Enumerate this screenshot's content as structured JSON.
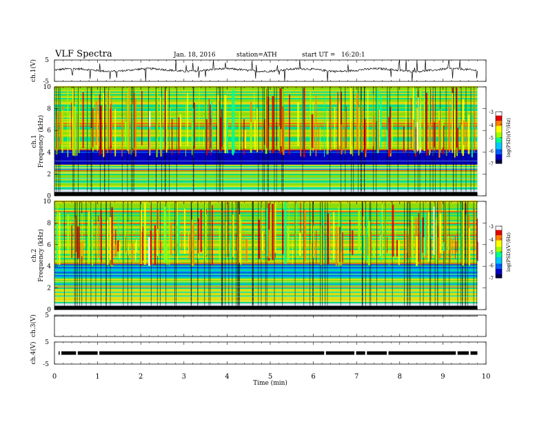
{
  "header": {
    "title": "VLF Spectra",
    "date": "Jan. 18, 2016",
    "station": "station=ATH",
    "start": "start UT =   16:20:1"
  },
  "chart_data": {
    "type": "heatmap",
    "x_axis": {
      "label": "Time (min)",
      "range": [
        0,
        10
      ],
      "ticks": [
        "0",
        "1",
        "2",
        "3",
        "4",
        "5",
        "6",
        "7",
        "8",
        "9",
        "10"
      ],
      "data_end_min": 9.8
    },
    "panels": [
      {
        "id": "ch1",
        "kind": "waveform",
        "ylabel": "ch.1(V)",
        "ticks": [
          "5",
          "-5"
        ],
        "range": [
          -5,
          5
        ],
        "baseline": 0.3
      },
      {
        "id": "ch1-spec",
        "kind": "spectrogram",
        "ylabel": "ch.1\nFrequency (kHz)",
        "yrange": [
          0,
          10
        ],
        "yticks": [
          "0",
          "2",
          "4",
          "6",
          "8",
          "10"
        ],
        "colorbar": {
          "label": "log(PSD)(V²/Hz)",
          "range": [
            -7,
            -3
          ],
          "ticks": [
            "-3",
            "-4",
            "-5",
            "-6",
            "-7"
          ]
        }
      },
      {
        "id": "ch2-spec",
        "kind": "spectrogram",
        "ylabel": "ch.2\nFrequency (kHz)",
        "yrange": [
          0,
          10
        ],
        "yticks": [
          "0",
          "2",
          "4",
          "6",
          "8",
          "10"
        ],
        "colorbar": {
          "label": "log(PSD)(V²/Hz)",
          "range": [
            -7,
            -3
          ],
          "ticks": [
            "-3",
            "-4",
            "-5",
            "-6",
            "-7"
          ]
        }
      },
      {
        "id": "ch3",
        "kind": "waveform",
        "ylabel": "ch.3(V)",
        "ticks": [
          "5"
        ],
        "range": [
          -5,
          5
        ],
        "baseline": 5
      },
      {
        "id": "ch4",
        "kind": "waveform",
        "ylabel": "ch.4(V)",
        "ticks": [
          "5",
          "-5"
        ],
        "range": [
          -5,
          5
        ],
        "baseline": 0
      }
    ],
    "colorscale": [
      "#00004a",
      "#0000c8",
      "#0060ff",
      "#00c8ff",
      "#00ff90",
      "#a0ff00",
      "#ffff00",
      "#ff8000",
      "#e00000",
      "#ffffff"
    ]
  }
}
